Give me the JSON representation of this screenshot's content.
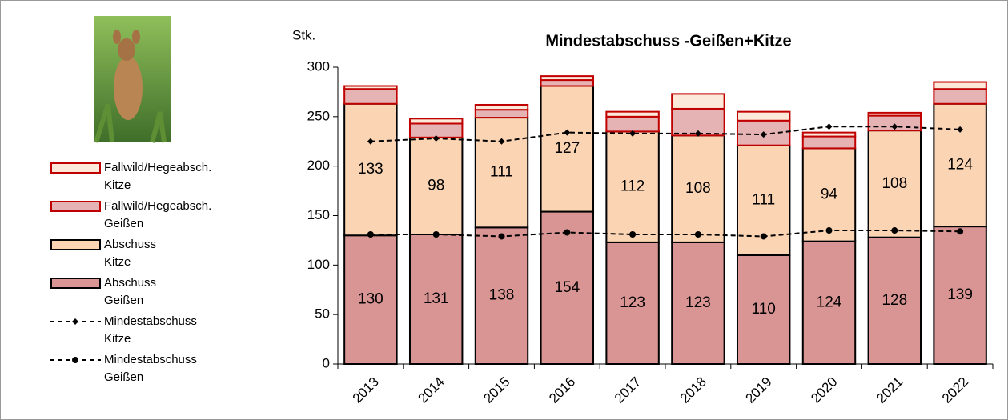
{
  "chart_data": {
    "type": "bar",
    "title": "Mindestabschuss -Geißen+Kitze",
    "y_label": "Stk.",
    "categories": [
      "2013",
      "2014",
      "2015",
      "2016",
      "2017",
      "2018",
      "2019",
      "2020",
      "2021",
      "2022"
    ],
    "series": [
      {
        "name": "Abschuss Geißen",
        "type": "bar",
        "color": "#d99594",
        "edgecolor": "#000000",
        "data_labels": true,
        "values": [
          130,
          131,
          138,
          154,
          123,
          123,
          110,
          124,
          128,
          139
        ]
      },
      {
        "name": "Abschuss Kitze",
        "type": "bar",
        "color": "#fbd4b4",
        "edgecolor": "#000000",
        "data_labels": true,
        "values": [
          133,
          98,
          111,
          127,
          112,
          108,
          111,
          94,
          108,
          124
        ]
      },
      {
        "name": "Fallwild/Hegeabsch. Geißen",
        "type": "bar",
        "color": "#e6b3b5",
        "edgecolor": "#c00000",
        "data_labels": false,
        "values": [
          15,
          14,
          8,
          6,
          15,
          27,
          25,
          12,
          15,
          15
        ]
      },
      {
        "name": "Fallwild/Hegeabsch. Kitze",
        "type": "bar",
        "color": "#fde9d9",
        "edgecolor": "#c00000",
        "data_labels": false,
        "values": [
          3,
          5,
          5,
          4,
          5,
          15,
          9,
          4,
          3,
          7
        ]
      },
      {
        "name": "Mindestabschuss Kitze",
        "type": "line",
        "color": "#000000",
        "marker": "diamond",
        "dashed": true,
        "values": [
          225,
          228,
          225,
          234,
          233,
          233,
          232,
          240,
          240,
          237
        ]
      },
      {
        "name": "Mindestabschuss Geißen",
        "type": "line",
        "color": "#000000",
        "marker": "circle",
        "dashed": true,
        "values": [
          131,
          131,
          129,
          133,
          131,
          131,
          129,
          135,
          135,
          134
        ]
      }
    ],
    "stacked": true,
    "ylim": [
      0,
      300
    ],
    "yticks": [
      0,
      50,
      100,
      150,
      200,
      250,
      300
    ],
    "grid": false,
    "legend": "left"
  }
}
